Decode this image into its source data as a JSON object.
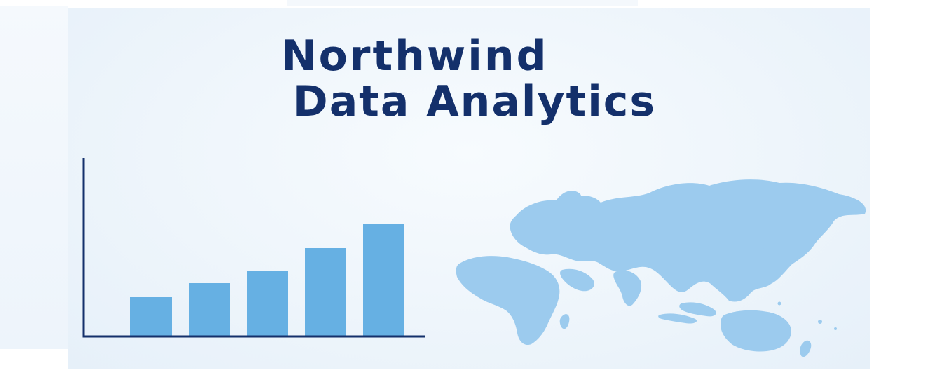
{
  "banner": {
    "title_line1": "Northwind",
    "title_line2": "Data Analytics"
  },
  "colors": {
    "title": "#14306b",
    "axis": "#14306b",
    "bar": "#66b0e3",
    "map": "#9ccbee",
    "background": "#eef5fb"
  },
  "icons": {
    "map": "world-map-icon"
  },
  "chart_data": {
    "type": "bar",
    "categories": [
      "",
      "",
      "",
      "",
      ""
    ],
    "values": [
      22,
      30,
      37,
      50,
      64
    ],
    "ylim": [
      0,
      100
    ],
    "title": "",
    "xlabel": "",
    "ylabel": "",
    "grid": false,
    "legend": "none"
  }
}
